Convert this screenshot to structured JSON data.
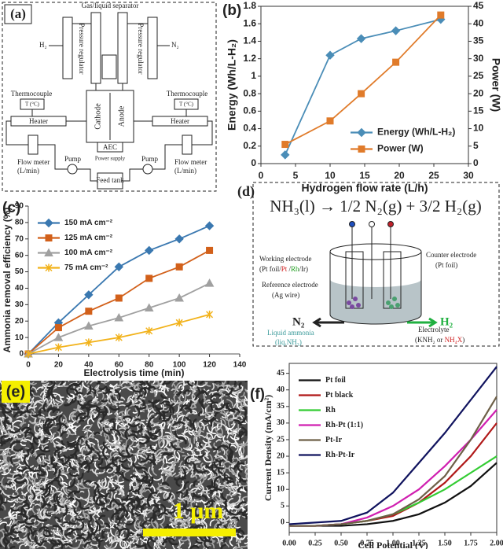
{
  "chart_data": [
    {
      "type": "line",
      "panel_label": "(b)",
      "font": "sans",
      "x_label": "Hydrogen flow rate (L/h)",
      "y_label": "Energy (Wh/L-H₂)",
      "y2_label": "Power (W)",
      "x": [
        3.5,
        10,
        14.5,
        19.5,
        26
      ],
      "xlim": [
        0,
        30
      ],
      "xticks": [
        0,
        5,
        10,
        15,
        20,
        25,
        30
      ],
      "ylim": [
        0,
        1.8
      ],
      "yticks": [
        0,
        0.2,
        0.4,
        0.6,
        0.8,
        1,
        1.2,
        1.4,
        1.6,
        1.8
      ],
      "y2lim": [
        0,
        45
      ],
      "y2ticks": [
        0,
        5,
        10,
        15,
        20,
        25,
        30,
        35,
        40,
        45
      ],
      "legend": "lower right",
      "series": [
        {
          "name": "Energy (Wh/L-H₂)",
          "color": "#4a8db7",
          "marker": "diamond",
          "values": [
            0.1,
            1.24,
            1.43,
            1.52,
            1.65
          ]
        },
        {
          "name": "Power (W)",
          "color": "#e07b2a",
          "marker": "square",
          "axis": "y2",
          "values": [
            5.5,
            12.2,
            20,
            29,
            42.5
          ]
        }
      ]
    },
    {
      "type": "line",
      "panel_label": "(c)",
      "font": "sans",
      "x_label": "Electrolysis time (min)",
      "y_label": "Ammonia removal efficiency (%)",
      "x": [
        0,
        20,
        40,
        60,
        80,
        100,
        120
      ],
      "xlim": [
        0,
        140
      ],
      "xticks": [
        0,
        20,
        40,
        60,
        80,
        100,
        120,
        140
      ],
      "ylim": [
        0,
        90
      ],
      "yticks": [
        0,
        10,
        20,
        30,
        40,
        50,
        60,
        70,
        80,
        90
      ],
      "legend": "upper left",
      "series": [
        {
          "name": "150 mA cm⁻²",
          "color": "#3a78b0",
          "marker": "diamond",
          "values": [
            0,
            19,
            36,
            53,
            63,
            70,
            78
          ]
        },
        {
          "name": "125 mA cm⁻²",
          "color": "#d2601a",
          "marker": "square",
          "values": [
            0,
            16,
            26,
            34,
            46,
            53,
            63
          ]
        },
        {
          "name": "100 mA cm⁻²",
          "color": "#a0a0a0",
          "marker": "triangle",
          "values": [
            0,
            10,
            17,
            22,
            28,
            34,
            43
          ]
        },
        {
          "name": "75 mA cm⁻²",
          "color": "#f2b21a",
          "marker": "cross",
          "values": [
            0,
            4,
            7,
            10,
            14,
            19,
            24
          ]
        }
      ]
    },
    {
      "type": "line",
      "panel_label": "(f)",
      "font": "serif",
      "x_label": "Cell Potential (V)",
      "y_label": "Current Density (mA/cm²)",
      "x": [
        0,
        0.25,
        0.5,
        0.75,
        1,
        1.25,
        1.5,
        1.75,
        2
      ],
      "xlim": [
        0,
        2
      ],
      "xticks": [
        {
          "value": 0,
          "label": "0.00"
        },
        0.25,
        {
          "value": 0.5,
          "label": "0.50"
        },
        0.75,
        {
          "value": 1,
          "label": "1.00"
        },
        1.25,
        {
          "value": 1.5,
          "label": "1.50"
        },
        1.75,
        {
          "value": 2,
          "label": "2.00"
        }
      ],
      "ylim": [
        -3,
        48
      ],
      "yticks": [
        0,
        5,
        10,
        15,
        20,
        25,
        30,
        35,
        40,
        45
      ],
      "legend": "upper left",
      "series": [
        {
          "name": "Pt foil",
          "color": "#111111",
          "values": [
            -1,
            -1,
            -1,
            -0.5,
            0.5,
            2.5,
            6,
            11,
            18
          ]
        },
        {
          "name": "Pt black",
          "color": "#b01818",
          "values": [
            -1,
            -1,
            -0.5,
            0.5,
            2,
            6,
            12,
            20,
            30
          ]
        },
        {
          "name": "Rh",
          "color": "#33cc33",
          "values": [
            -1,
            -1,
            -0.5,
            0.5,
            2.5,
            6,
            10,
            15,
            20
          ]
        },
        {
          "name": "Rh-Pt (1:1)",
          "color": "#d01fb0",
          "values": [
            -1,
            -1,
            -0.5,
            1.5,
            5,
            10,
            17,
            25,
            34
          ]
        },
        {
          "name": "Pt-Ir",
          "color": "#6e6048",
          "values": [
            -1,
            -1,
            -0.5,
            0.5,
            2.5,
            7,
            14,
            25,
            38
          ]
        },
        {
          "name": "Rh-Pt-Ir",
          "color": "#10135e",
          "values": [
            -0.5,
            0,
            0.5,
            3,
            9,
            18,
            27,
            37,
            47
          ]
        }
      ]
    }
  ],
  "diagram_a": {
    "panel_label": "(a)",
    "separator": "Gas/liquid separator",
    "h2": "H₂",
    "n2": "N₂",
    "pressure_regulator": "Pressure regulator",
    "thermocouple": "Thermocouple",
    "temperature": "T (°C)",
    "heater": "Heater",
    "flow_meter": "Flow meter",
    "flow_unit": "(L/min)",
    "pump": "Pump",
    "cathode": "Cathode",
    "anode": "Anode",
    "cell": "AEC",
    "power_supply": "Power supply",
    "feed_tank": "Feed tank"
  },
  "diagram_d": {
    "panel_label": "(d)",
    "equation": "NH₃(l) → 1/2 N₂(g) + 3/2 H₂(g)",
    "working_electrode": "Working electrode",
    "we_open": "(Pt foil/",
    "we_pt": "Pt",
    "we_sep": " /",
    "we_rh": "Rh",
    "we_close": "/Ir)",
    "reference_electrode": "Reference electrode",
    "reference_material": "(Ag wire)",
    "counter_electrode": "Counter electrode",
    "counter_material": "(Pt foil)",
    "n2": "N₂",
    "h2": "H₂",
    "liquid": "Liquid ammonia",
    "liquid_formula": "(liq.NH₃)",
    "electrolyte": "Electrolyte",
    "electrolyte_open": "(KNH₂ or ",
    "electrolyte_salt": "NH₄X",
    "electrolyte_close": ")"
  },
  "image_e": {
    "panel_label": "(e)",
    "scale": "1 μm"
  }
}
